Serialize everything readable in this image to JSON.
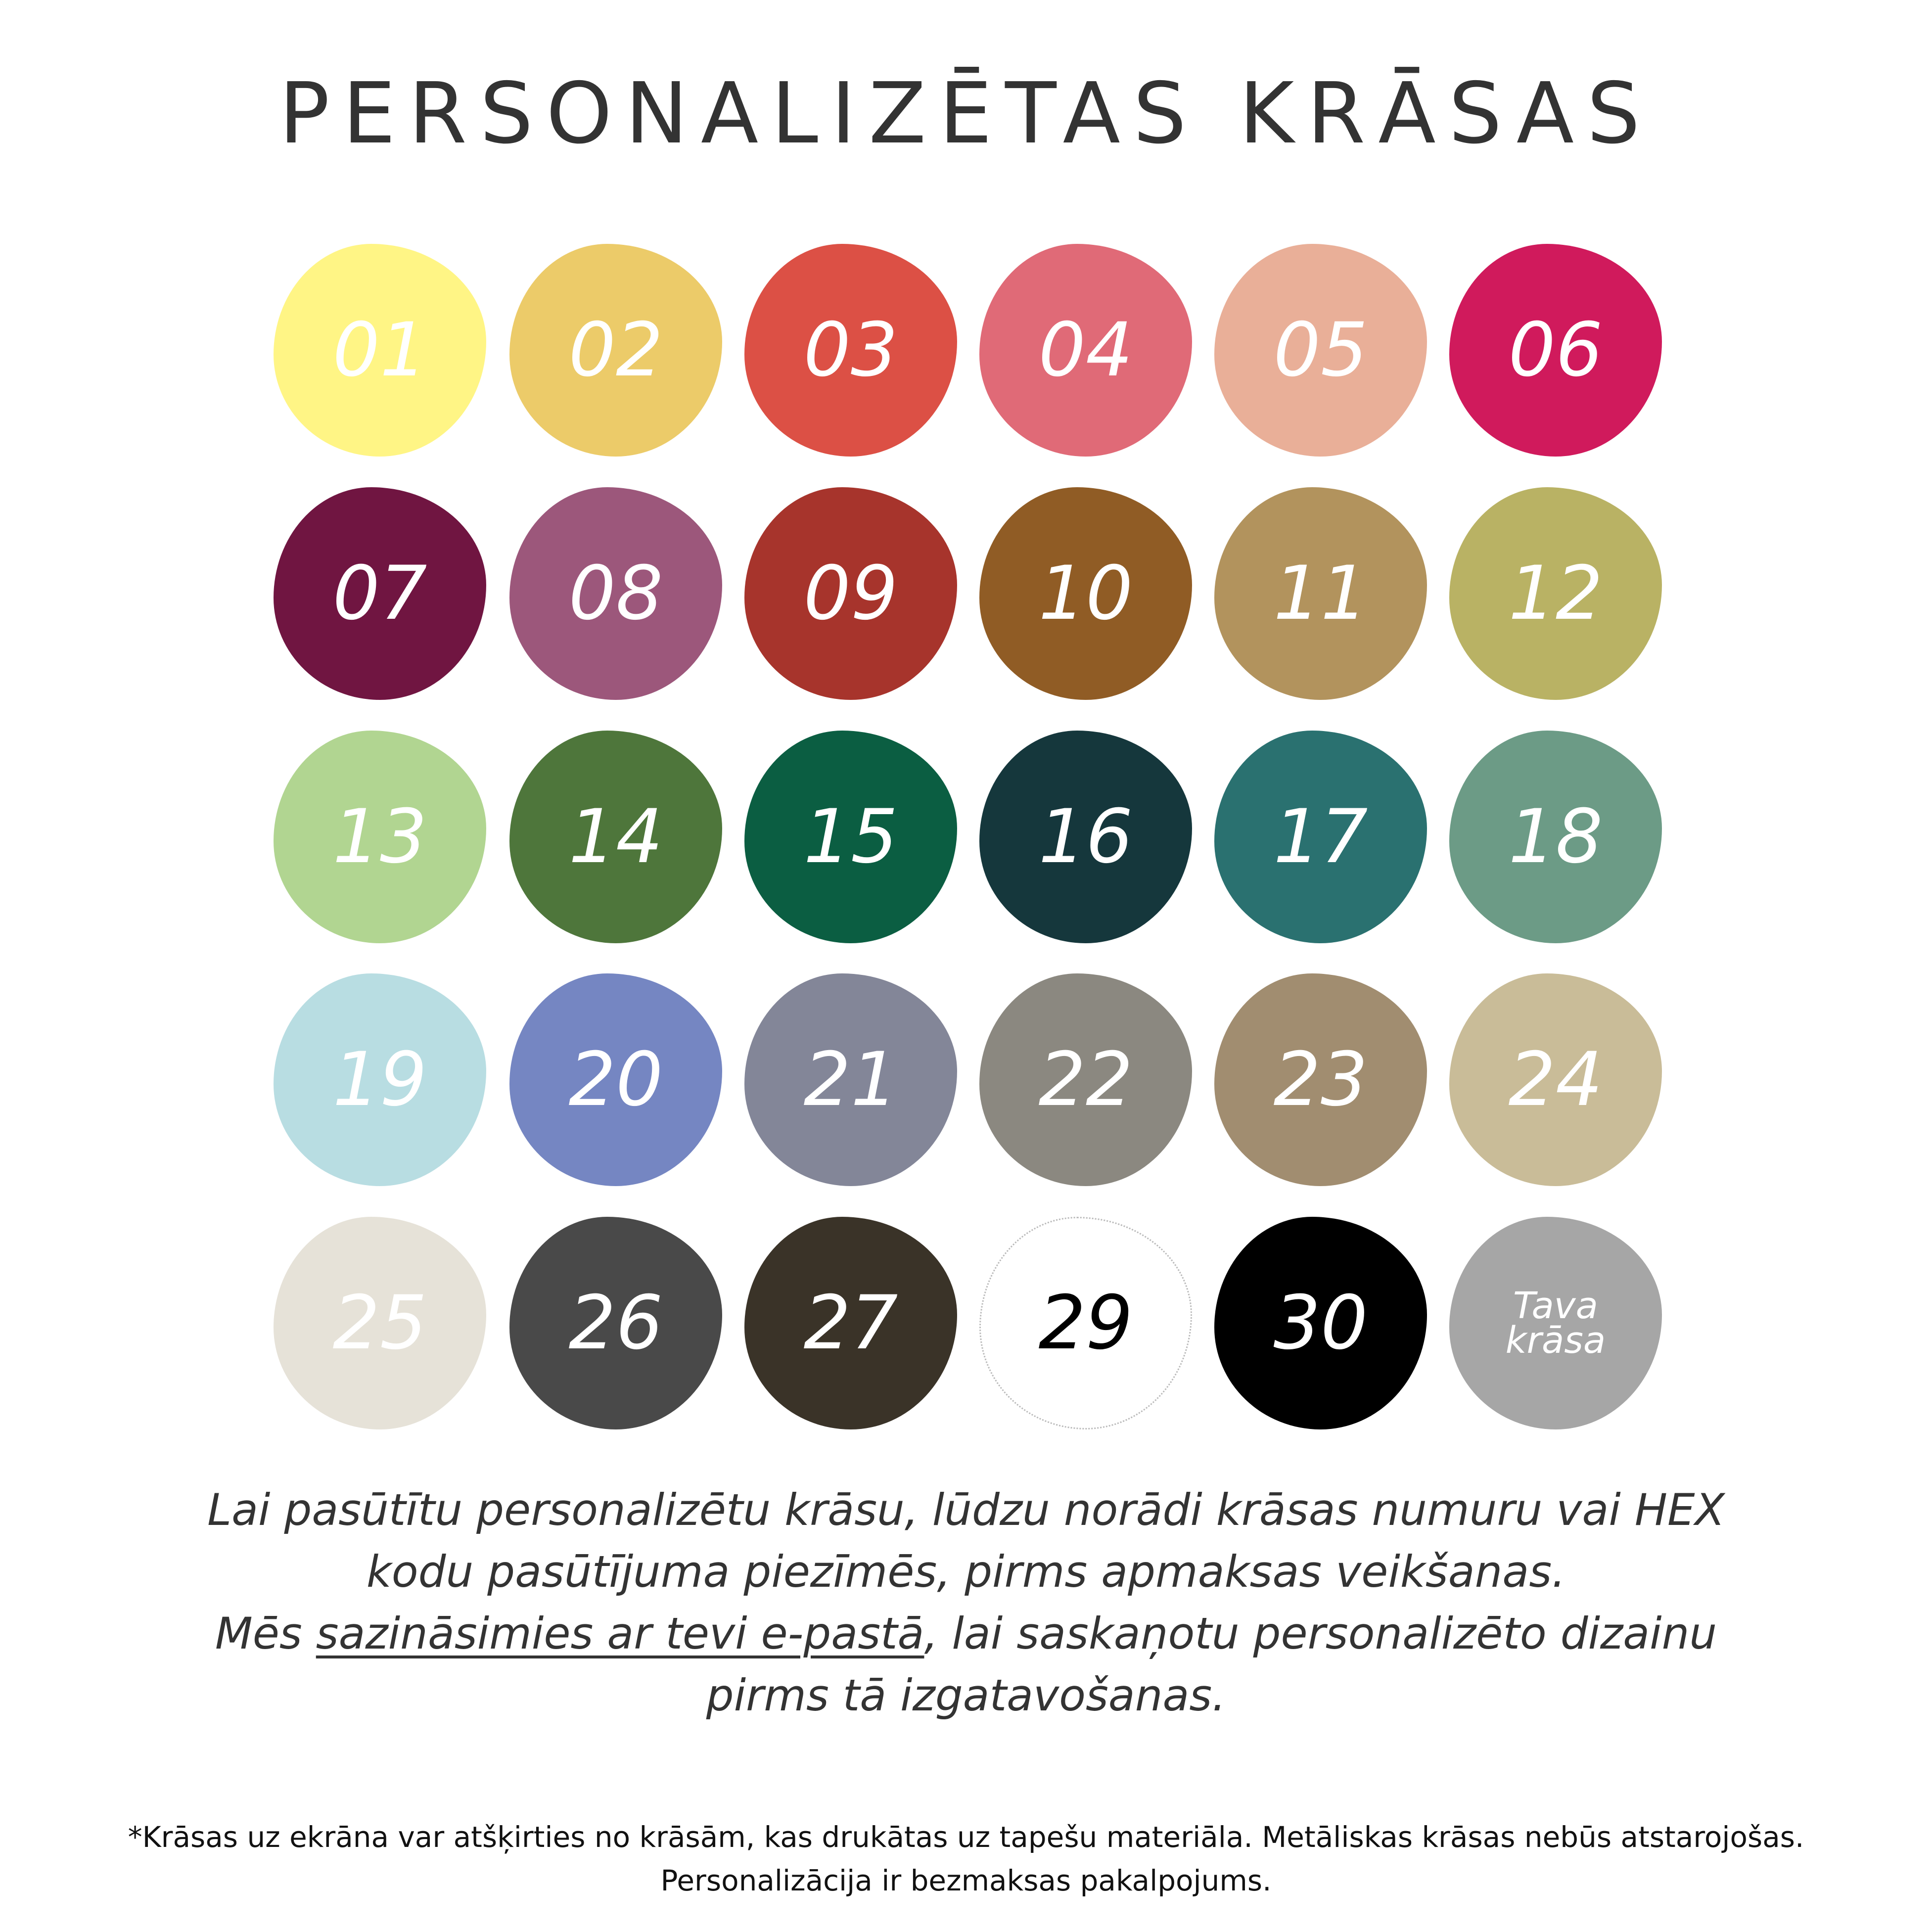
{
  "title": "PERSONALIZĒTAS KRĀSAS",
  "swatches": [
    {
      "label": "01",
      "color": "#FFF585",
      "text": "#ffffff"
    },
    {
      "label": "02",
      "color": "#ECCB69",
      "text": "#ffffff"
    },
    {
      "label": "03",
      "color": "#DC5045",
      "text": "#ffffff"
    },
    {
      "label": "04",
      "color": "#E06A77",
      "text": "#ffffff"
    },
    {
      "label": "05",
      "color": "#E9AF98",
      "text": "#ffffff"
    },
    {
      "label": "06",
      "color": "#D01A5C",
      "text": "#ffffff"
    },
    {
      "label": "07",
      "color": "#701541",
      "text": "#ffffff"
    },
    {
      "label": "08",
      "color": "#9C577B",
      "text": "#ffffff"
    },
    {
      "label": "09",
      "color": "#A7342C",
      "text": "#ffffff"
    },
    {
      "label": "10",
      "color": "#905C25",
      "text": "#ffffff"
    },
    {
      "label": "11",
      "color": "#B2935D",
      "text": "#ffffff"
    },
    {
      "label": "12",
      "color": "#B9B264",
      "text": "#ffffff"
    },
    {
      "label": "13",
      "color": "#B1D591",
      "text": "#ffffff"
    },
    {
      "label": "14",
      "color": "#4E763B",
      "text": "#ffffff"
    },
    {
      "label": "15",
      "color": "#0B5E42",
      "text": "#ffffff"
    },
    {
      "label": "16",
      "color": "#15373C",
      "text": "#ffffff"
    },
    {
      "label": "17",
      "color": "#2A7170",
      "text": "#ffffff"
    },
    {
      "label": "18",
      "color": "#6C9B86",
      "text": "#ffffff"
    },
    {
      "label": "19",
      "color": "#B8DDE2",
      "text": "#ffffff"
    },
    {
      "label": "20",
      "color": "#7586C2",
      "text": "#ffffff"
    },
    {
      "label": "21",
      "color": "#838698",
      "text": "#ffffff"
    },
    {
      "label": "22",
      "color": "#8B8880",
      "text": "#ffffff"
    },
    {
      "label": "23",
      "color": "#A18D70",
      "text": "#ffffff"
    },
    {
      "label": "24",
      "color": "#C9BC98",
      "text": "#ffffff"
    },
    {
      "label": "25",
      "color": "#E6E2D8",
      "text": "#ffffff"
    },
    {
      "label": "26",
      "color": "#494949",
      "text": "#ffffff"
    },
    {
      "label": "27",
      "color": "#3A3328",
      "text": "#ffffff"
    },
    {
      "label": "29",
      "color": "#FFFFFF",
      "text": "#000000"
    },
    {
      "label": "30",
      "color": "#000000",
      "text": "#ffffff"
    },
    {
      "label": "Tava krāsa",
      "color": "#A6A6A6",
      "text": "#ffffff"
    }
  ],
  "instructions": {
    "line1": "Lai pasūtītu personalizētu krāsu, lūdzu norādi krāsas numuru vai HEX",
    "line2": "kodu pasūtījuma piezīmēs, pirms apmaksas veikšanas.",
    "line3_pre": "Mēs ",
    "line3_link": "sazināsimies ar tevi e-pastā",
    "line3_post": ", lai saskaņotu personalizēto dizainu",
    "line4": "pirms tā izgatavošanas."
  },
  "footnote": {
    "line1": "*Krāsas uz ekrāna var atšķirties no krāsām, kas drukātas uz tapešu materiāla. Metāliskas krāsas nebūs atstarojošas.",
    "line2": "Personalizācija ir bezmaksas pakalpojums."
  }
}
